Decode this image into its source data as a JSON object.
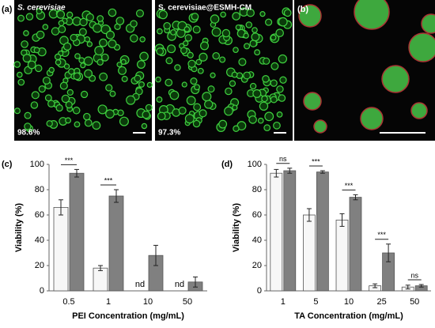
{
  "figure": {
    "panel_a_label": "(a)",
    "panel_a_left_title": "S. cerevisiae",
    "panel_a_left_viability": "98.6%",
    "panel_a_right_title": "S. cerevisiae@ESMH-CM",
    "panel_a_right_viability": "97.3%",
    "panel_b_label": "(b)"
  },
  "chart_data": [
    {
      "type": "bar",
      "panel_label": "(c)",
      "x_label": "PEI Concentration (mg/mL)",
      "y_label": "Viability (%)",
      "categories": [
        "0.5",
        "1",
        "10",
        "50"
      ],
      "series": [
        {
          "color": "#f7f7f7",
          "values": [
            66,
            18,
            null,
            null
          ],
          "errors": [
            6,
            2,
            null,
            null
          ],
          "value_labels": [
            null,
            null,
            "nd",
            "nd"
          ]
        },
        {
          "color": "#808080",
          "values": [
            93,
            75,
            28,
            7
          ],
          "errors": [
            3,
            5,
            8,
            4
          ]
        }
      ],
      "significance": [
        "***",
        "***",
        null,
        null
      ],
      "ylim": [
        0,
        100
      ],
      "yticks": [
        0,
        20,
        40,
        60,
        80,
        100
      ]
    },
    {
      "type": "bar",
      "panel_label": "(d)",
      "x_label": "TA Concentration (mg/mL)",
      "y_label": "Viability (%)",
      "categories": [
        "1",
        "5",
        "10",
        "25",
        "50"
      ],
      "series": [
        {
          "color": "#f7f7f7",
          "values": [
            93,
            60,
            56,
            4,
            3
          ],
          "errors": [
            3,
            5,
            5,
            1.5,
            1.5
          ]
        },
        {
          "color": "#808080",
          "values": [
            95,
            94,
            74,
            30,
            4
          ],
          "errors": [
            2,
            1,
            2,
            7,
            1
          ]
        }
      ],
      "significance": [
        "ns",
        "***",
        "***",
        "***",
        "ns"
      ],
      "ylim": [
        0,
        100
      ],
      "yticks": [
        0,
        20,
        40,
        60,
        80,
        100
      ]
    }
  ]
}
